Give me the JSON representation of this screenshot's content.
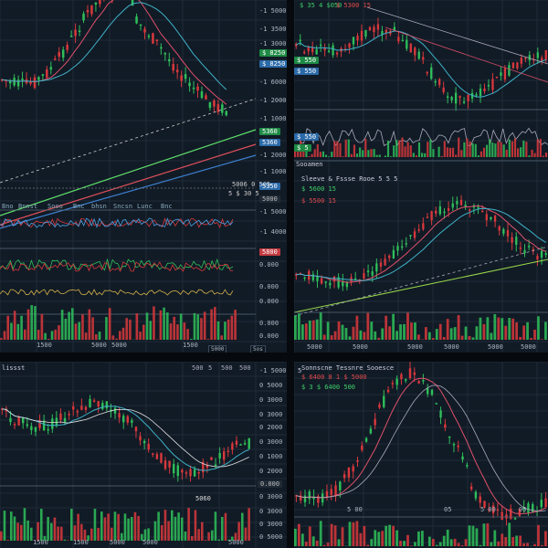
{
  "panels": {
    "top_left": {
      "price_labels": [
        "-1 5000",
        "-1 3500",
        "-1 3000",
        "-1 6000",
        "-1 2000",
        "-1 1000",
        "-1 2000",
        "-1 1000",
        "-1 5000",
        "-1 4000",
        "-1 3000",
        "-1 3000"
      ],
      "tags": {
        "green1": "$ 8250",
        "blue1": "$ 8250",
        "dark1": "5000",
        "green2": "5360",
        "blue2": "5360",
        "blue3": "5350",
        "red1": "5800"
      },
      "lower_labels": [
        "0.000",
        "0.000",
        "0.000",
        "0.000",
        "0.000"
      ],
      "mid_note": "5006 0 505",
      "mid_note2": "5 $ 30 5",
      "toolbar_items": [
        "Bno",
        "Bnnst",
        "Sooo",
        "Bnc",
        "bhsn",
        "Sncsn",
        "Lunc",
        "Bnc",
        "Bon",
        "Boo"
      ],
      "x_labels": [
        "1500",
        "5000",
        "5000",
        "1500"
      ],
      "btn1": "5000",
      "btn2": "5os"
    },
    "top_right": {
      "header": "$ 35 4 $050",
      "header_red": "$ 5300 15",
      "mid_header": "Sleeve & Fssse Rooe 5 5 5",
      "tags": [
        "$ 550",
        "$ 550",
        "$ 550",
        "$ 5"
      ],
      "mid_subheader": "$ 5600 15",
      "mid_subheader2": "$ 5500 15",
      "label_left": "Sooamen",
      "x_labels": [
        "5000",
        "5000",
        "5000",
        "5000",
        "5000",
        "5000",
        "5000",
        "5000"
      ],
      "divider_label": "5000"
    },
    "bottom_left": {
      "header": "lissst",
      "header_right_items": [
        "500",
        "5",
        "500",
        "500"
      ],
      "price_labels": [
        "-1 5000",
        "0 5000",
        "0 3000",
        "0 3000",
        "0 2000",
        "0 3000",
        "0 1000",
        "0 2000",
        "0 3000",
        "0 3000",
        "0 3000",
        "0 3000"
      ],
      "price_tag": "0.000",
      "mid_note": "5060",
      "x_labels": [
        "1500",
        "1500",
        "5000",
        "5000",
        "5000"
      ],
      "lower_labels": [
        "0 3000",
        "0 3000",
        "0 5000",
        "0 5000"
      ]
    },
    "bottom_right": {
      "header": "Sonnscne Tessnre Sooesce",
      "header2": "$ 6400 8 1 $ 5000",
      "header3": "$ 3 $ 6400 500",
      "x_labels": [
        "5 00",
        "05",
        "5 00",
        "05"
      ],
      "label_left": "5"
    }
  },
  "colors": {
    "bull": "#2fbf5a",
    "bear": "#d9383c",
    "bg": "#111b26",
    "blue": "#4ba3e6",
    "green_line": "#5fe06a",
    "red_line": "#e0505a"
  }
}
